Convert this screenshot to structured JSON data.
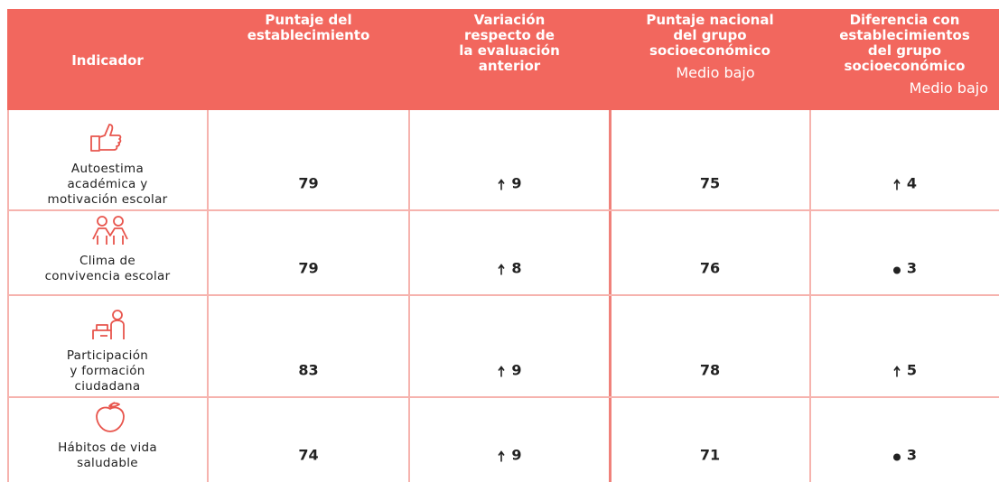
{
  "header": [
    {
      "lines": [
        "Indicador"
      ]
    },
    {
      "lines": [
        "Puntaje del",
        "establecimiento"
      ]
    },
    {
      "lines": [
        "Variación",
        "respecto de",
        "la evaluación",
        "anterior"
      ]
    },
    {
      "lines": [
        "Puntaje nacional",
        "del grupo",
        "socioeconómico"
      ],
      "sub": "Medio bajo"
    },
    {
      "lines": [
        "Diferencia con",
        "establecimientos",
        "del grupo",
        "socioeconómico"
      ],
      "sub": "Medio bajo"
    }
  ],
  "rows": [
    {
      "label": [
        "Autoestima",
        "académica y",
        "motivación escolar"
      ],
      "score": 79,
      "variation": {
        "trend": "up",
        "value": 9
      },
      "national": 75,
      "difference": {
        "trend": "up",
        "value": 4
      }
    },
    {
      "label": [
        "Clima de",
        "convivencia escolar"
      ],
      "score": 79,
      "variation": {
        "trend": "up",
        "value": 8
      },
      "national": 76,
      "difference": {
        "trend": "equal",
        "value": 3
      }
    },
    {
      "label": [
        "Participación",
        "y formación",
        "ciudadana"
      ],
      "score": 83,
      "variation": {
        "trend": "up",
        "value": 9
      },
      "national": 78,
      "difference": {
        "trend": "up",
        "value": 5
      }
    },
    {
      "label": [
        "Hábitos de vida",
        "saludable"
      ],
      "score": 74,
      "variation": {
        "trend": "up",
        "value": 9
      },
      "national": 71,
      "difference": {
        "trend": "equal",
        "value": 3
      }
    }
  ]
}
